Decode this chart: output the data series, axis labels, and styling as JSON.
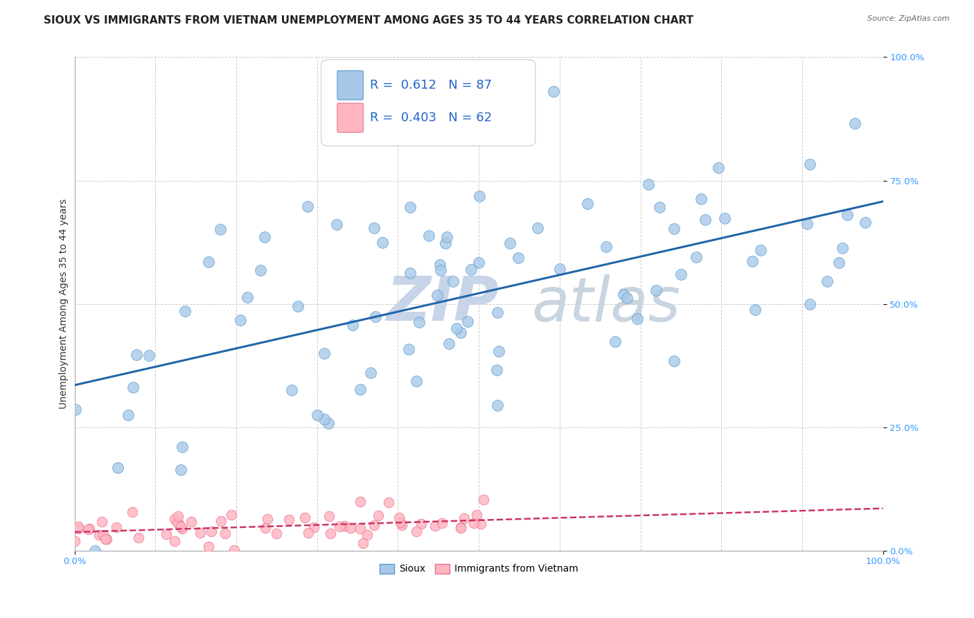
{
  "title": "SIOUX VS IMMIGRANTS FROM VIETNAM UNEMPLOYMENT AMONG AGES 35 TO 44 YEARS CORRELATION CHART",
  "source": "Source: ZipAtlas.com",
  "ylabel": "Unemployment Among Ages 35 to 44 years",
  "xlim": [
    0,
    1
  ],
  "ylim": [
    0,
    1
  ],
  "xtick_labels": [
    "0.0%",
    "100.0%"
  ],
  "ytick_labels": [
    "0.0%",
    "25.0%",
    "50.0%",
    "75.0%",
    "100.0%"
  ],
  "ytick_vals": [
    0,
    0.25,
    0.5,
    0.75,
    1.0
  ],
  "sioux_R": 0.612,
  "sioux_N": 87,
  "vietnam_R": 0.403,
  "vietnam_N": 62,
  "sioux_color": "#a8c8e8",
  "sioux_edge": "#5599cc",
  "vietnam_color": "#ffb6c1",
  "vietnam_edge": "#e87090",
  "sioux_line_color": "#2266aa",
  "vietnam_line_color": "#cc3366",
  "watermark_zip_color": "#c8d4e8",
  "watermark_atlas_color": "#c8d4e0",
  "background_color": "#ffffff",
  "title_fontsize": 11,
  "axis_label_fontsize": 10,
  "legend_fontsize": 13,
  "tick_color": "#3399ff",
  "grid_color": "#cccccc"
}
